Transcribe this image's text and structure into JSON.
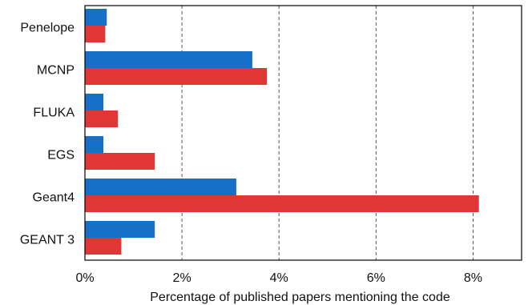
{
  "chart_data": {
    "type": "bar",
    "orientation": "horizontal",
    "categories": [
      "Penelope",
      "MCNP",
      "FLUKA",
      "EGS",
      "Geant4",
      "GEANT 3"
    ],
    "series": [
      {
        "color": "#1670c8",
        "values": [
          0.45,
          3.45,
          0.38,
          0.38,
          3.12,
          1.44
        ]
      },
      {
        "color": "#e03636",
        "values": [
          0.42,
          3.75,
          0.68,
          1.44,
          8.12,
          0.75
        ]
      }
    ],
    "xlabel": "Percentage of published papers mentioning the code",
    "ylabel": "",
    "xlim": [
      0,
      9
    ],
    "xticks": [
      0,
      2,
      4,
      6,
      8
    ],
    "xtick_labels": [
      "0%",
      "2%",
      "4%",
      "6%",
      "8%"
    ],
    "grid": "vertical dashed at major ticks",
    "legend": "none"
  }
}
